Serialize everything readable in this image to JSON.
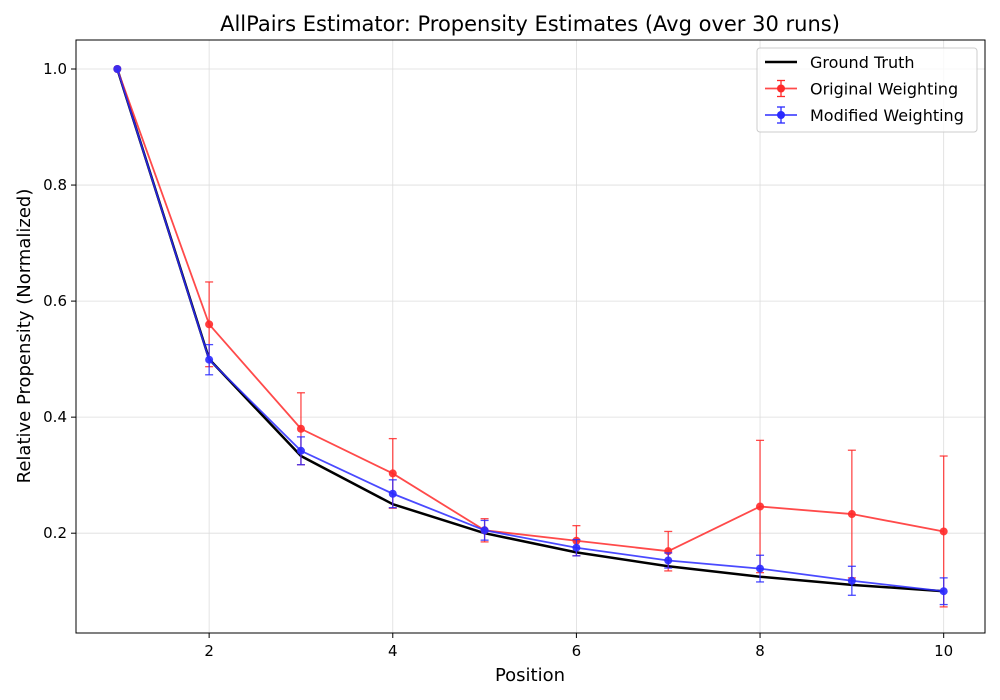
{
  "chart_data": {
    "type": "line",
    "title": "AllPairs Estimator: Propensity Estimates (Avg over 30 runs)",
    "xlabel": "Position",
    "ylabel": "Relative Propensity (Normalized)",
    "xlim": [
      0.55,
      10.45
    ],
    "ylim": [
      0.028,
      1.05
    ],
    "xticks": [
      2,
      4,
      6,
      8,
      10
    ],
    "yticks": [
      0.2,
      0.4,
      0.6,
      0.8,
      1.0
    ],
    "xtick_labels": [
      "2",
      "4",
      "6",
      "8",
      "10"
    ],
    "ytick_labels": [
      "0.2",
      "0.4",
      "0.6",
      "0.8",
      "1.0"
    ],
    "grid": true,
    "legend_position": "top-right",
    "x": [
      1,
      2,
      3,
      4,
      5,
      6,
      7,
      8,
      9,
      10
    ],
    "series": [
      {
        "name": "Ground Truth",
        "color": "#000000",
        "style": "line",
        "values": [
          1.0,
          0.5,
          0.333,
          0.25,
          0.2,
          0.167,
          0.143,
          0.125,
          0.111,
          0.1
        ]
      },
      {
        "name": "Original Weighting",
        "color": "#ff2a2a",
        "style": "errorbar",
        "values": [
          1.0,
          0.56,
          0.38,
          0.303,
          0.205,
          0.187,
          0.169,
          0.246,
          0.233,
          0.203
        ],
        "errors": [
          0.0,
          0.073,
          0.062,
          0.06,
          0.02,
          0.026,
          0.034,
          0.114,
          0.11,
          0.13
        ]
      },
      {
        "name": "Modified Weighting",
        "color": "#2a2aff",
        "style": "errorbar",
        "values": [
          1.0,
          0.499,
          0.342,
          0.268,
          0.205,
          0.175,
          0.153,
          0.139,
          0.118,
          0.1
        ],
        "errors": [
          0.0,
          0.026,
          0.024,
          0.024,
          0.017,
          0.014,
          0.013,
          0.023,
          0.025,
          0.023
        ]
      }
    ]
  }
}
